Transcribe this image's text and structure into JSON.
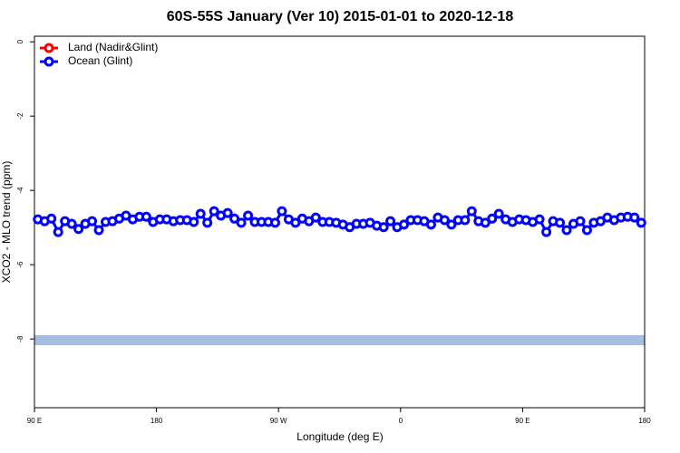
{
  "chart_data": {
    "type": "line",
    "title": "60S-55S January (Ver 10)   2015-01-01 to 2020-12-18",
    "x_label": "Longitude (deg E)",
    "y_label": "XCO2 - MLO trend (ppm)",
    "xlim": [
      90,
      540
    ],
    "ylim": [
      -9.85,
      0.15
    ],
    "xticks": [
      {
        "value": 90,
        "label": "90 E"
      },
      180,
      {
        "value": 270,
        "label": "90 W"
      },
      {
        "value": 360,
        "label": "0"
      },
      {
        "value": 450,
        "label": "90 E"
      },
      {
        "value": 540,
        "label": "180"
      }
    ],
    "yticks": [
      0,
      -2,
      -4,
      -6,
      -8
    ],
    "legend": "top-left",
    "x": [
      92.5,
      97.5,
      102.5,
      107.5,
      112.5,
      117.5,
      122.5,
      127.5,
      132.5,
      137.5,
      142.5,
      147.5,
      152.5,
      157.5,
      162.5,
      167.5,
      172.5,
      177.5,
      182.5,
      187.5,
      192.5,
      197.5,
      202.5,
      207.5,
      212.5,
      217.5,
      222.5,
      227.5,
      232.5,
      237.5,
      242.5,
      247.5,
      252.5,
      257.5,
      262.5,
      267.5,
      272.5,
      277.5,
      282.5,
      287.5,
      292.5,
      297.5,
      302.5,
      307.5,
      312.5,
      317.5,
      322.5,
      327.5,
      332.5,
      337.5,
      342.5,
      347.5,
      352.5,
      357.5,
      362.5,
      367.5,
      372.5,
      377.5,
      382.5,
      387.5,
      392.5,
      397.5,
      402.5,
      407.5,
      412.5,
      417.5,
      422.5,
      427.5,
      432.5,
      437.5,
      442.5,
      447.5,
      452.5,
      457.5,
      462.5,
      467.5,
      472.5,
      477.5,
      482.5,
      487.5,
      492.5,
      497.5,
      502.5,
      507.5,
      512.5,
      517.5,
      522.5,
      527.5,
      532.5,
      537.5
    ],
    "series": [
      {
        "name": "Land (Nadir&Glint)",
        "color": "#ff0000",
        "values": [
          null,
          null,
          null,
          null,
          null,
          null,
          null,
          null,
          null,
          null,
          null,
          null,
          null,
          null,
          null,
          null,
          null,
          null,
          null,
          null,
          null,
          null,
          null,
          null,
          null,
          null,
          null,
          null,
          null,
          null,
          null,
          null,
          null,
          null,
          null,
          null,
          null,
          null,
          null,
          null,
          null,
          null,
          null,
          null,
          null,
          null,
          null,
          null,
          null,
          null,
          null,
          null,
          null,
          null,
          null,
          null,
          null,
          null,
          null,
          null,
          null,
          null,
          null,
          null,
          null,
          null,
          null,
          null,
          null,
          null,
          null,
          null,
          null,
          null,
          null,
          null,
          null,
          null,
          null,
          null,
          null,
          null,
          null,
          null,
          null,
          null,
          null,
          null,
          null,
          null
        ]
      },
      {
        "name": "Ocean (Glint)",
        "color": "#0000ff",
        "values": [
          -4.78,
          -4.83,
          -4.76,
          -5.12,
          -4.83,
          -4.9,
          -5.04,
          -4.9,
          -4.83,
          -5.07,
          -4.85,
          -4.83,
          -4.76,
          -4.68,
          -4.78,
          -4.71,
          -4.71,
          -4.85,
          -4.78,
          -4.78,
          -4.83,
          -4.8,
          -4.8,
          -4.85,
          -4.63,
          -4.87,
          -4.56,
          -4.68,
          -4.61,
          -4.76,
          -4.87,
          -4.68,
          -4.85,
          -4.85,
          -4.85,
          -4.87,
          -4.56,
          -4.78,
          -4.87,
          -4.76,
          -4.83,
          -4.73,
          -4.85,
          -4.85,
          -4.87,
          -4.92,
          -4.99,
          -4.9,
          -4.9,
          -4.87,
          -4.95,
          -4.99,
          -4.83,
          -4.99,
          -4.92,
          -4.8,
          -4.8,
          -4.83,
          -4.92,
          -4.73,
          -4.8,
          -4.92,
          -4.8,
          -4.8,
          -4.56,
          -4.83,
          -4.87,
          -4.76,
          -4.63,
          -4.78,
          -4.85,
          -4.78,
          -4.8,
          -4.85,
          -4.78,
          -5.12,
          -4.83,
          -4.87,
          -5.07,
          -4.9,
          -4.83,
          -5.07,
          -4.87,
          -4.83,
          -4.73,
          -4.8,
          -4.73,
          -4.71,
          -4.73,
          -4.87
        ]
      }
    ]
  }
}
